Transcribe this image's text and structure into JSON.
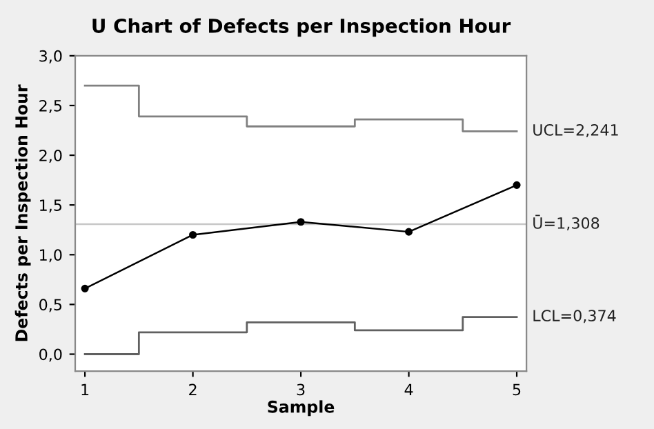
{
  "chart_data": {
    "type": "line",
    "title": "U Chart of Defects per Inspection Hour",
    "xlabel": "Sample",
    "ylabel": "Defects per Inspection Hour",
    "x": [
      1,
      2,
      3,
      4,
      5
    ],
    "series": [
      {
        "name": "UCL=2,241",
        "type": "step",
        "color": "#808080",
        "values": [
          2.7,
          2.39,
          2.29,
          2.36,
          2.241
        ]
      },
      {
        "name": "LCL=0,374",
        "type": "step",
        "color": "#606060",
        "values": [
          0,
          0.22,
          0.32,
          0.24,
          0.374
        ]
      },
      {
        "color": "#000000",
        "marker": "circle",
        "values": [
          0.66,
          1.2,
          1.33,
          1.23,
          1.7
        ]
      }
    ],
    "ref_lines": [
      {
        "axis": "y",
        "value": 1.308,
        "label": "Ū=1,308",
        "color": "#c8c8c8"
      }
    ],
    "xlim": [
      0.91,
      5.09
    ],
    "ylim": [
      -0.17,
      3.0
    ],
    "xticks": [
      1,
      2,
      3,
      4,
      5
    ],
    "yticks": [
      {
        "value": 0,
        "label": "0,0"
      },
      {
        "value": 0.5,
        "label": "0,5"
      },
      {
        "value": 1,
        "label": "1,0"
      },
      {
        "value": 1.5,
        "label": "1,5"
      },
      {
        "value": 2,
        "label": "2,0"
      },
      {
        "value": 2.5,
        "label": "2,5"
      },
      {
        "value": 3,
        "label": "3,0"
      }
    ],
    "grid": false,
    "legend": false
  }
}
